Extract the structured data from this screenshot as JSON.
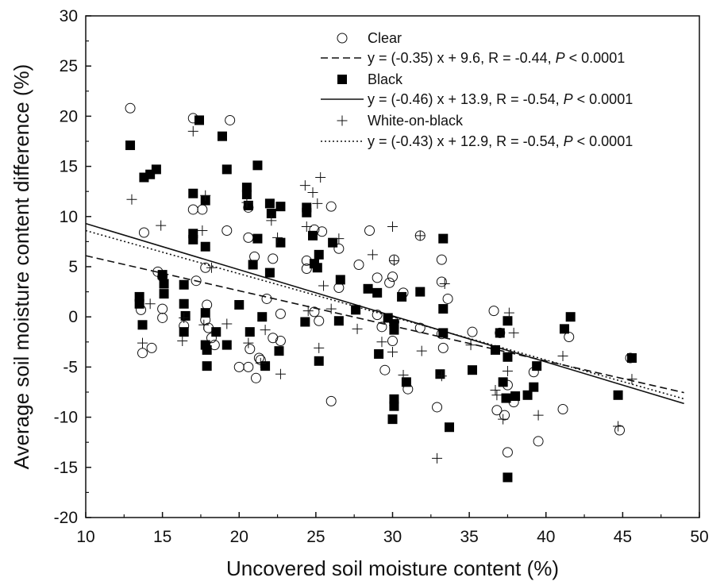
{
  "chart_data": {
    "type": "scatter",
    "title": "",
    "xlabel": "Uncovered soil moisture content (%)",
    "ylabel": "Average soil moisture content difference (%)",
    "xlim": [
      10,
      50
    ],
    "ylim": [
      -20,
      30
    ],
    "xticks": [
      10,
      15,
      20,
      25,
      30,
      35,
      40,
      45,
      50
    ],
    "yticks": [
      -20,
      -15,
      -10,
      -5,
      0,
      5,
      10,
      15,
      20,
      25,
      30
    ],
    "grid": false,
    "legend_position": "top-right",
    "series": [
      {
        "name": "Clear",
        "marker": "open-circle",
        "fit_label": "y = (-0.35) x + 9.6, R = -0.44,",
        "fit_p": "< 0.0001",
        "fit": {
          "slope": -0.35,
          "intercept": 9.6,
          "style": "dashed"
        },
        "points": [
          [
            12.9,
            20.8
          ],
          [
            17,
            19.8
          ],
          [
            19.4,
            19.6
          ],
          [
            13.8,
            8.4
          ],
          [
            17,
            10.7
          ],
          [
            17.6,
            10.7
          ],
          [
            19.2,
            8.6
          ],
          [
            20.6,
            10.9
          ],
          [
            20.6,
            7.9
          ],
          [
            21,
            6
          ],
          [
            21.8,
            1.8
          ],
          [
            22.2,
            5.8
          ],
          [
            24.4,
            5.6
          ],
          [
            24.4,
            4.8
          ],
          [
            24.9,
            8.7
          ],
          [
            25.4,
            8.5
          ],
          [
            26,
            11
          ],
          [
            26.5,
            6.8
          ],
          [
            27.8,
            5.2
          ],
          [
            28.5,
            8.6
          ],
          [
            29,
            3.9
          ],
          [
            29.8,
            3.4
          ],
          [
            30.1,
            5.7
          ],
          [
            30,
            4
          ],
          [
            31.8,
            8.1
          ],
          [
            33.2,
            5.7
          ],
          [
            33.2,
            3.5
          ],
          [
            33.6,
            1.8
          ],
          [
            14.7,
            4.5
          ],
          [
            15,
            4
          ],
          [
            17.2,
            3.6
          ],
          [
            17.8,
            4.9
          ],
          [
            15,
            0.8
          ],
          [
            15,
            -0.1
          ],
          [
            13.6,
            0.7
          ],
          [
            13.7,
            -3.6
          ],
          [
            14.3,
            -3.1
          ],
          [
            16.4,
            -0.9
          ],
          [
            17.9,
            1.2
          ],
          [
            17.8,
            -0.3
          ],
          [
            18,
            -1.1
          ],
          [
            18.4,
            -2.8
          ],
          [
            18.2,
            -2.1
          ],
          [
            20,
            -5
          ],
          [
            20.7,
            -3.2
          ],
          [
            20.6,
            -5
          ],
          [
            21.1,
            -6.1
          ],
          [
            21.4,
            -4.3
          ],
          [
            21.3,
            -4.1
          ],
          [
            22.2,
            -2.1
          ],
          [
            22.7,
            0.3
          ],
          [
            22.7,
            -2.4
          ],
          [
            24.9,
            0.5
          ],
          [
            25.2,
            -0.4
          ],
          [
            26,
            -8.4
          ],
          [
            26.5,
            2.9
          ],
          [
            29,
            0.2
          ],
          [
            29.3,
            -1
          ],
          [
            29.5,
            -5.3
          ],
          [
            30,
            -2.4
          ],
          [
            30.1,
            -0.5
          ],
          [
            30.7,
            2.4
          ],
          [
            31,
            -7.2
          ],
          [
            31.8,
            -1.1
          ],
          [
            33.2,
            -1.7
          ],
          [
            33.3,
            -3.1
          ],
          [
            32.9,
            -9
          ],
          [
            35.2,
            -1.5
          ],
          [
            36.6,
            0.6
          ],
          [
            36.8,
            -9.3
          ],
          [
            37.3,
            -9.8
          ],
          [
            37,
            -1.6
          ],
          [
            37.5,
            -6.8
          ],
          [
            37.5,
            -13.5
          ],
          [
            37.9,
            -8.5
          ],
          [
            39.2,
            -5.5
          ],
          [
            39.5,
            -12.4
          ],
          [
            41.1,
            -9.2
          ],
          [
            41.5,
            -2
          ],
          [
            44.8,
            -11.3
          ],
          [
            45.5,
            -4.1
          ]
        ]
      },
      {
        "name": "Black",
        "marker": "filled-square",
        "fit_label": "y = (-0.46) x + 13.9, R = -0.54,",
        "fit_p": "< 0.0001",
        "fit": {
          "slope": -0.46,
          "intercept": 13.9,
          "style": "solid"
        },
        "points": [
          [
            12.9,
            17.1
          ],
          [
            13.8,
            13.9
          ],
          [
            14.2,
            14.2
          ],
          [
            14.6,
            14.7
          ],
          [
            17.4,
            19.6
          ],
          [
            18.9,
            18
          ],
          [
            19.2,
            14.7
          ],
          [
            20.5,
            12.9
          ],
          [
            20.5,
            12.2
          ],
          [
            21.2,
            15.1
          ],
          [
            17,
            12.3
          ],
          [
            17,
            8.3
          ],
          [
            17,
            7.7
          ],
          [
            17.8,
            11.6
          ],
          [
            17.8,
            7
          ],
          [
            20.6,
            11.1
          ],
          [
            21.2,
            7.8
          ],
          [
            22,
            11.3
          ],
          [
            22.1,
            10.3
          ],
          [
            22.7,
            11
          ],
          [
            22.7,
            7.4
          ],
          [
            24.4,
            10.9
          ],
          [
            24.4,
            10.4
          ],
          [
            24.8,
            8.1
          ],
          [
            25.2,
            6.2
          ],
          [
            26.1,
            7.4
          ],
          [
            26.6,
            3.7
          ],
          [
            22,
            4.4
          ],
          [
            20.9,
            5.2
          ],
          [
            24.9,
            5.3
          ],
          [
            25.1,
            4.9
          ],
          [
            13.5,
            2
          ],
          [
            13.5,
            1.3
          ],
          [
            15,
            4.2
          ],
          [
            15.1,
            3.3
          ],
          [
            15.1,
            2.3
          ],
          [
            16.4,
            3.2
          ],
          [
            16.4,
            1.3
          ],
          [
            16.5,
            0.1
          ],
          [
            16.4,
            -1.5
          ],
          [
            13.7,
            -0.8
          ],
          [
            17.8,
            0.4
          ],
          [
            17.8,
            -2.8
          ],
          [
            17.9,
            -3.3
          ],
          [
            17.9,
            -4.9
          ],
          [
            18.5,
            -1.5
          ],
          [
            19.2,
            -2.8
          ],
          [
            20,
            1.2
          ],
          [
            20.7,
            -1.5
          ],
          [
            21.5,
            0
          ],
          [
            21.7,
            -4.9
          ],
          [
            22.6,
            -3.4
          ],
          [
            24.3,
            -0.5
          ],
          [
            25.2,
            -4.4
          ],
          [
            26.5,
            -0.4
          ],
          [
            27.6,
            0.7
          ],
          [
            28.4,
            2.8
          ],
          [
            29,
            2.4
          ],
          [
            29.1,
            -3.7
          ],
          [
            29.7,
            -0.1
          ],
          [
            30.1,
            -0.7
          ],
          [
            30.1,
            -1.3
          ],
          [
            30.1,
            -8.2
          ],
          [
            30.1,
            -8.9
          ],
          [
            30,
            -10.2
          ],
          [
            30.6,
            2
          ],
          [
            30.9,
            -6.5
          ],
          [
            31.8,
            2.5
          ],
          [
            33.1,
            -5.7
          ],
          [
            33.3,
            7.8
          ],
          [
            33.3,
            0.8
          ],
          [
            33.3,
            -1.6
          ],
          [
            33.7,
            -11
          ],
          [
            35.2,
            -5.3
          ],
          [
            36.7,
            -3.3
          ],
          [
            37,
            -1.6
          ],
          [
            37.2,
            -6.5
          ],
          [
            37.4,
            -8.1
          ],
          [
            37.5,
            -0.4
          ],
          [
            37.5,
            -4
          ],
          [
            37.5,
            -16
          ],
          [
            38,
            -7.9
          ],
          [
            38.8,
            -7.8
          ],
          [
            39.2,
            -7
          ],
          [
            39.4,
            -4.9
          ],
          [
            41.2,
            -1.2
          ],
          [
            41.6,
            0
          ],
          [
            44.7,
            -7.8
          ],
          [
            45.6,
            -4.1
          ]
        ]
      },
      {
        "name": "White-on-black",
        "marker": "plus",
        "fit_label": "y = (-0.43) x + 12.9, R = -0.54,",
        "fit_p": "< 0.0001",
        "fit": {
          "slope": -0.43,
          "intercept": 12.9,
          "style": "dotted"
        },
        "points": [
          [
            13,
            11.7
          ],
          [
            14.9,
            9.1
          ],
          [
            17,
            18.5
          ],
          [
            17.8,
            12.1
          ],
          [
            17.6,
            8.6
          ],
          [
            18.2,
            4.9
          ],
          [
            20.5,
            11.4
          ],
          [
            22.1,
            9.6
          ],
          [
            24.3,
            13.1
          ],
          [
            25.3,
            13.9
          ],
          [
            24.8,
            12.4
          ],
          [
            24.4,
            9
          ],
          [
            25.1,
            11.3
          ],
          [
            22.5,
            7.9
          ],
          [
            25.5,
            3.1
          ],
          [
            26.5,
            7.8
          ],
          [
            28.7,
            6.2
          ],
          [
            30,
            9
          ],
          [
            30.1,
            5.6
          ],
          [
            31.8,
            8.1
          ],
          [
            33.4,
            3.3
          ],
          [
            13.7,
            -2.6
          ],
          [
            14.2,
            1.3
          ],
          [
            16.3,
            -2.4
          ],
          [
            16.4,
            -0.1
          ],
          [
            17.7,
            -0.8
          ],
          [
            19.2,
            -0.7
          ],
          [
            20.6,
            -2.6
          ],
          [
            21.4,
            -4.6
          ],
          [
            21.7,
            -1.3
          ],
          [
            22.7,
            -5.7
          ],
          [
            24.5,
            0.6
          ],
          [
            25.2,
            -3.1
          ],
          [
            26,
            0.8
          ],
          [
            27.7,
            -1.2
          ],
          [
            29.3,
            -2.5
          ],
          [
            30,
            -3.5
          ],
          [
            30.7,
            -5.8
          ],
          [
            31.9,
            -3.4
          ],
          [
            32.9,
            -14.1
          ],
          [
            33.2,
            -5.9
          ],
          [
            35.1,
            -2.8
          ],
          [
            36.7,
            -7.3
          ],
          [
            36.8,
            -7.8
          ],
          [
            37.2,
            -10.2
          ],
          [
            37.5,
            -5.4
          ],
          [
            37.6,
            0.4
          ],
          [
            37.9,
            -1.6
          ],
          [
            39.5,
            -9.8
          ],
          [
            41.1,
            -3.9
          ],
          [
            44.7,
            -10.9
          ],
          [
            45.6,
            -6.2
          ]
        ]
      }
    ]
  }
}
